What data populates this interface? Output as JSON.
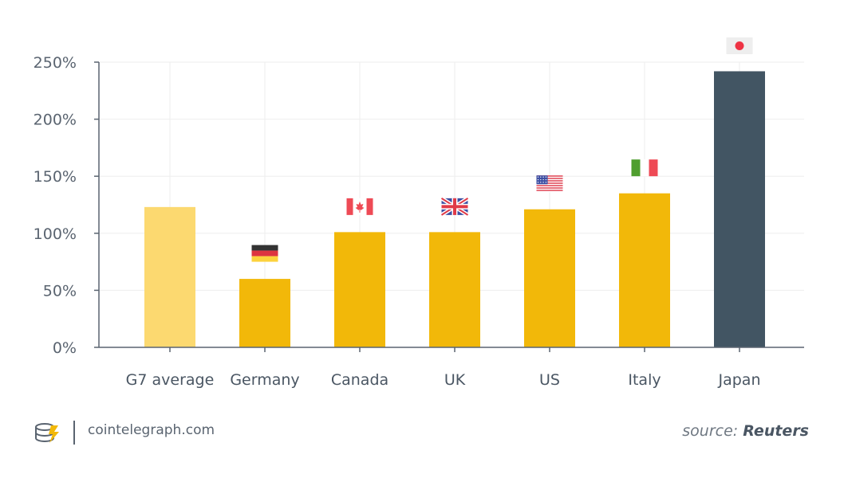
{
  "chart_data": {
    "type": "bar",
    "categories": [
      "G7 average",
      "Germany",
      "Canada",
      "UK",
      "US",
      "Italy",
      "Japan"
    ],
    "values": [
      123,
      60,
      101,
      101,
      121,
      135,
      242
    ],
    "flags": [
      "",
      "germany",
      "canada",
      "uk",
      "us",
      "italy",
      "japan"
    ],
    "colors": {
      "average": "#fcd970",
      "default": "#f2b809",
      "highlight": "#425563",
      "axis": "#5a6470",
      "grid": "#eeeeee"
    },
    "bar_color_roles": [
      "average",
      "default",
      "default",
      "default",
      "default",
      "default",
      "highlight"
    ],
    "ylim": [
      0,
      250
    ],
    "yticks": [
      0,
      50,
      100,
      150,
      200,
      250
    ],
    "ytick_labels": [
      "0%",
      "50%",
      "100%",
      "150%",
      "200%",
      "250%"
    ],
    "grid": true,
    "title": "",
    "xlabel": "",
    "ylabel": ""
  },
  "footer": {
    "site": "cointelegraph.com",
    "source_prefix": "source:",
    "source_name": "Reuters"
  },
  "icons": {
    "logo": "cointelegraph-logo-icon"
  }
}
